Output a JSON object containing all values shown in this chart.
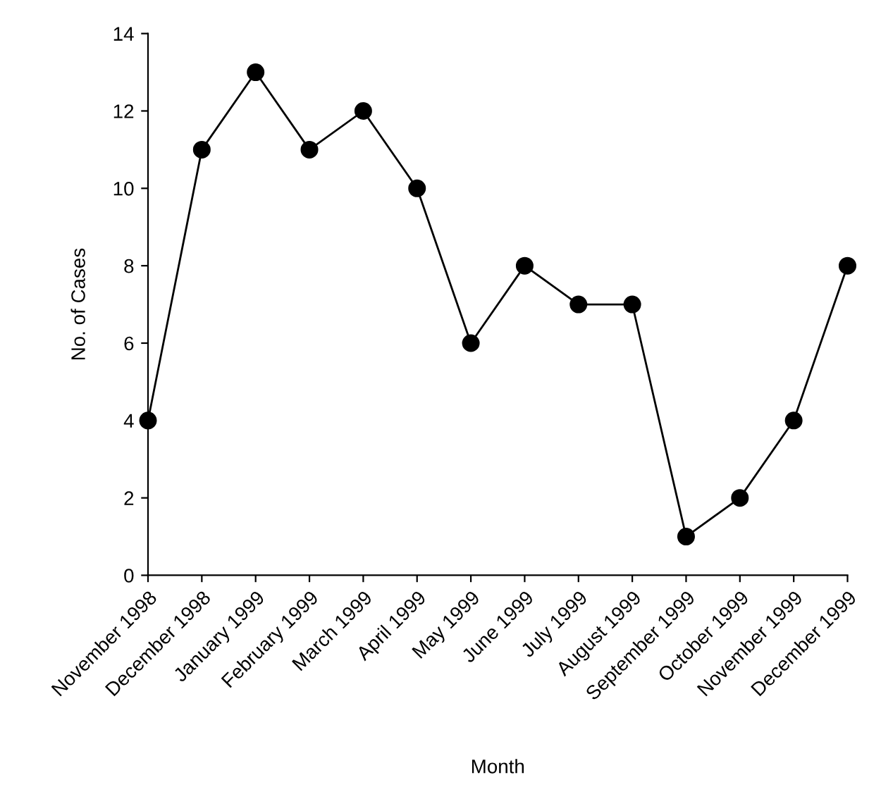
{
  "chart_data": {
    "type": "line",
    "categories": [
      "November 1998",
      "December 1998",
      "January 1999",
      "February 1999",
      "March 1999",
      "April 1999",
      "May 1999",
      "June 1999",
      "July 1999",
      "August 1999",
      "September 1999",
      "October 1999",
      "November 1999",
      "December 1999"
    ],
    "values": [
      4,
      11,
      13,
      11,
      12,
      10,
      6,
      8,
      7,
      7,
      1,
      2,
      4,
      8
    ],
    "color": "#000000",
    "xlabel": "Month",
    "ylabel": "No. of Cases",
    "ylim": [
      0,
      14
    ],
    "yticks": [
      0,
      2,
      4,
      6,
      8,
      10,
      12,
      14
    ],
    "marker": "circle",
    "line_style": "solid",
    "grid": false,
    "legend": false
  }
}
